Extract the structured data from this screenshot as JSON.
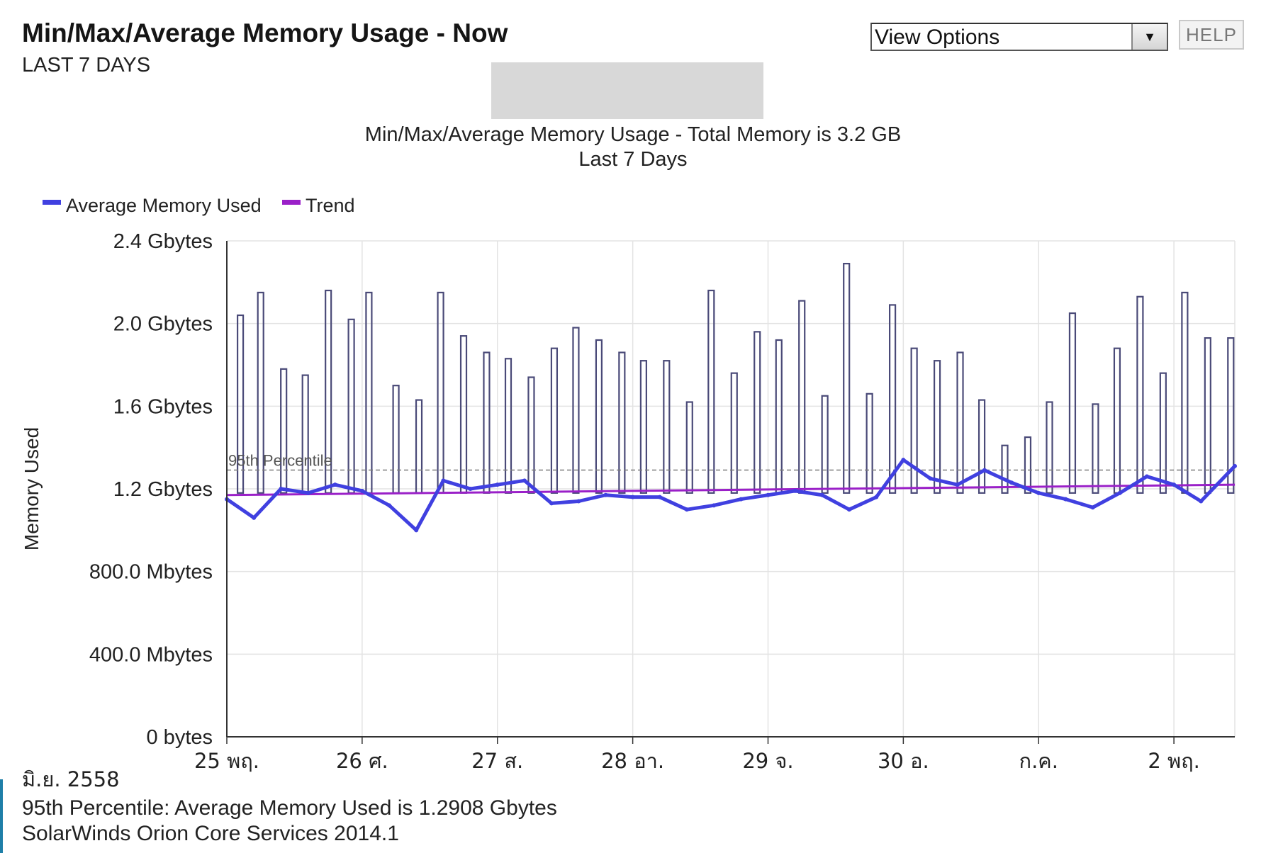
{
  "header": {
    "title": "Min/Max/Average Memory Usage - Now",
    "subtitle": "LAST 7 DAYS"
  },
  "controls": {
    "view_options_label": "View Options",
    "help_label": "HELP"
  },
  "chart_data": {
    "type": "line",
    "title": "Min/Max/Average Memory Usage - Total Memory is 3.2 GB",
    "subtitle": "Last 7 Days",
    "ylabel": "Memory Used",
    "xlabel": "",
    "x_ticks": [
      "25 พฤ.",
      "26 ศ.",
      "27 ส.",
      "28 อา.",
      "29 จ.",
      "30 อ.",
      "ก.ค.",
      "2 พฤ."
    ],
    "x_axis_caption": "มิ.ย. 2558",
    "y_ticks": [
      "0 bytes",
      "400.0 Mbytes",
      "800.0 Mbytes",
      "1.2 Gbytes",
      "1.6 Gbytes",
      "2.0 Gbytes",
      "2.4 Gbytes"
    ],
    "ylim_gb": [
      0,
      2.4
    ],
    "grid": true,
    "legend_placement": "top-left",
    "percentile_line": {
      "label": "95th Percentile",
      "value_gb": 1.2908
    },
    "series": [
      {
        "name": "Average Memory Used",
        "color": "#4040e0",
        "x_day": [
          0.0,
          0.2,
          0.4,
          0.6,
          0.8,
          1.0,
          1.2,
          1.4,
          1.6,
          1.8,
          2.0,
          2.2,
          2.4,
          2.6,
          2.8,
          3.0,
          3.2,
          3.4,
          3.6,
          3.8,
          4.0,
          4.2,
          4.4,
          4.6,
          4.8,
          5.0,
          5.2,
          5.4,
          5.6,
          5.8,
          6.0,
          6.2,
          6.4,
          6.6,
          6.8,
          7.0,
          7.2,
          7.45
        ],
        "values_gb": [
          1.15,
          1.06,
          1.2,
          1.18,
          1.22,
          1.19,
          1.12,
          1.0,
          1.24,
          1.2,
          1.22,
          1.24,
          1.13,
          1.14,
          1.17,
          1.16,
          1.16,
          1.1,
          1.12,
          1.15,
          1.17,
          1.19,
          1.17,
          1.1,
          1.16,
          1.34,
          1.25,
          1.22,
          1.29,
          1.23,
          1.18,
          1.15,
          1.11,
          1.18,
          1.26,
          1.22,
          1.14,
          1.31
        ]
      },
      {
        "name": "Trend",
        "color": "#9a20c8",
        "x_day": [
          0.0,
          7.45
        ],
        "values_gb": [
          1.17,
          1.22
        ]
      },
      {
        "name": "Max Memory Used",
        "color": "#4a4a78",
        "x_day": [
          0.1,
          0.25,
          0.42,
          0.58,
          0.75,
          0.92,
          1.05,
          1.25,
          1.42,
          1.58,
          1.75,
          1.92,
          2.08,
          2.25,
          2.42,
          2.58,
          2.75,
          2.92,
          3.08,
          3.25,
          3.42,
          3.58,
          3.75,
          3.92,
          4.08,
          4.25,
          4.42,
          4.58,
          4.75,
          4.92,
          5.08,
          5.25,
          5.42,
          5.58,
          5.75,
          5.92,
          6.08,
          6.25,
          6.42,
          6.58,
          6.75,
          6.92,
          7.08,
          7.25,
          7.42
        ],
        "values_gb": [
          2.04,
          2.15,
          1.78,
          1.75,
          2.16,
          2.02,
          2.15,
          1.7,
          1.63,
          2.15,
          1.94,
          1.86,
          1.83,
          1.74,
          1.88,
          1.98,
          1.92,
          1.86,
          1.82,
          1.82,
          1.62,
          2.16,
          1.76,
          1.96,
          1.92,
          2.11,
          1.65,
          2.29,
          1.66,
          2.09,
          1.88,
          1.82,
          1.86,
          1.63,
          1.41,
          1.45,
          1.62,
          2.05,
          1.61,
          1.88,
          2.13,
          1.76,
          2.15,
          1.93,
          1.93
        ]
      }
    ],
    "footer_percentile": "95th Percentile: Average Memory Used is 1.2908  Gbytes",
    "footer_source": "SolarWinds Orion Core Services 2014.1"
  }
}
